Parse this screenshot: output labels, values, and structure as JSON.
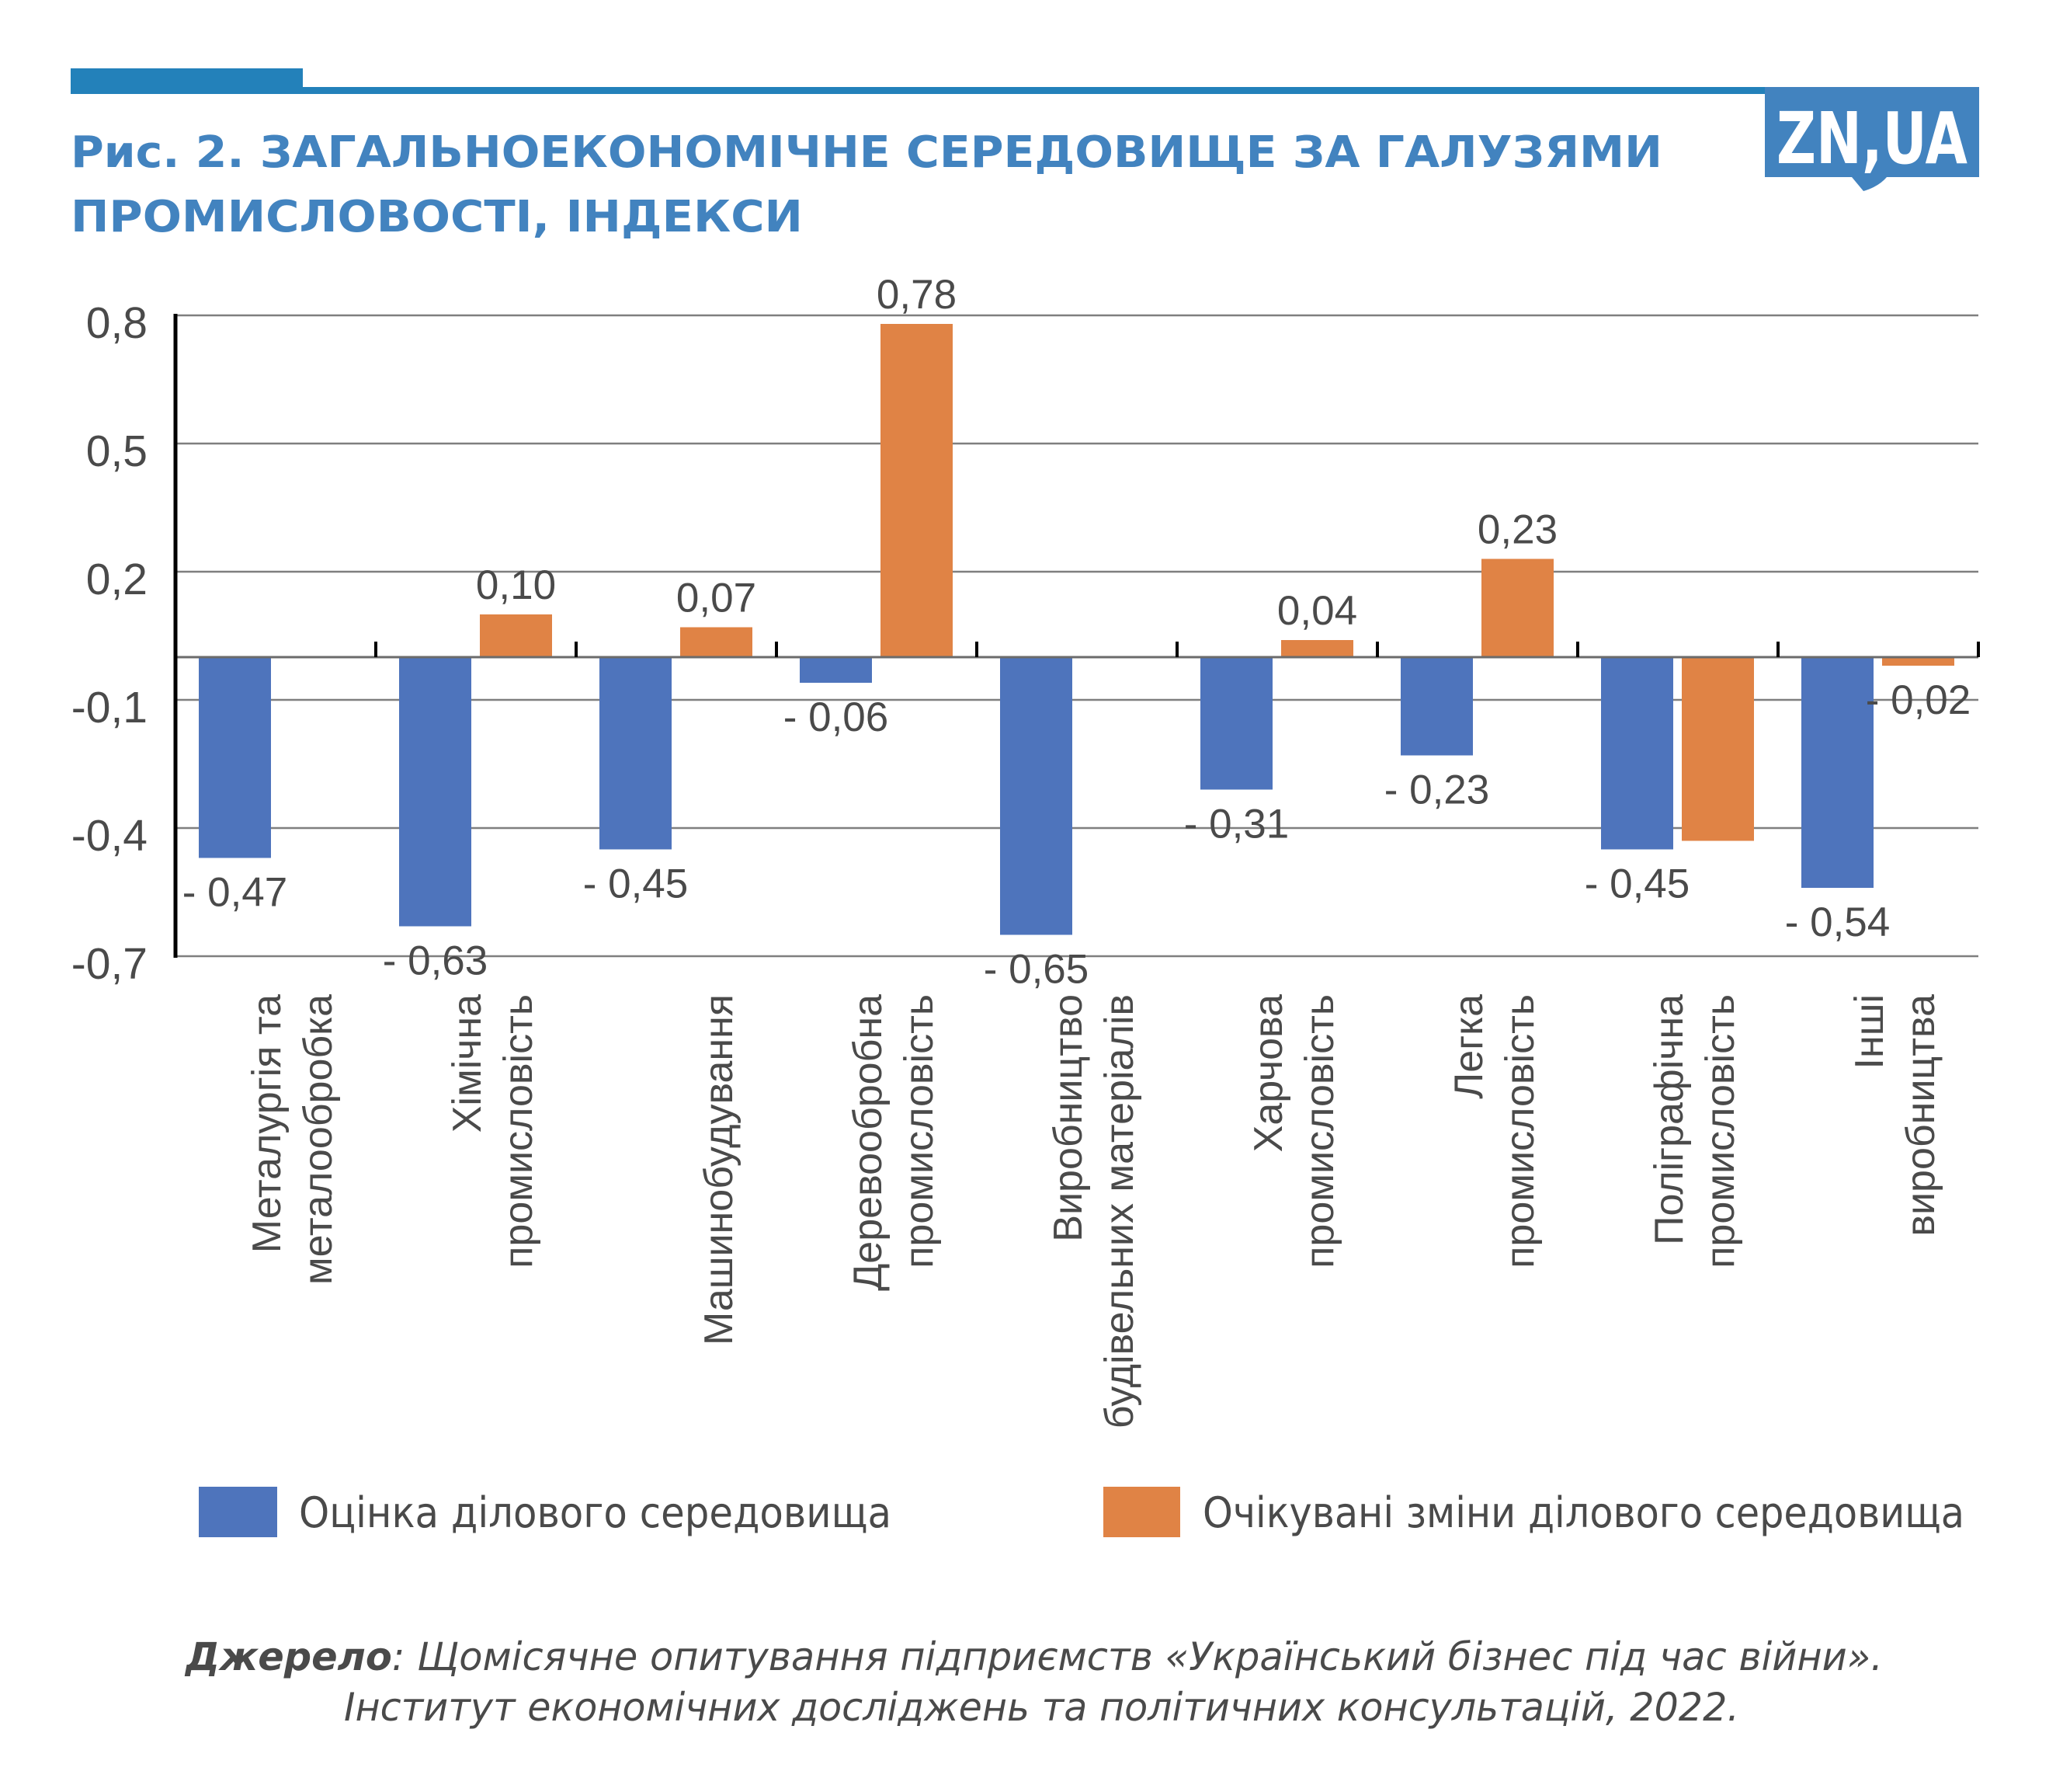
{
  "colors": {
    "accent_dark": "#2381BA",
    "title": "#4283BF",
    "logo_bg": "#4283BF",
    "series_assessment": "#4E74BC",
    "series_expected": "#E08345",
    "text": "#4A4A4A",
    "grid": "#7F7F7F",
    "axis": "#000000"
  },
  "header": {
    "title_line1": "Рис. 2. ЗАГАЛЬНОЕКОНОМІЧНЕ СЕРЕДОВИЩЕ ЗА ГАЛУЗЯМИ",
    "title_line2": "ПРОМИСЛОВОСТІ, ІНДЕКСИ",
    "logo": "ZN,UA"
  },
  "chart_data": {
    "type": "bar",
    "title": "Рис. 2. ЗАГАЛЬНОЕКОНОМІЧНЕ СЕРЕДОВИЩЕ ЗА ГАЛУЗЯМИ ПРОМИСЛОВОСТІ, ІНДЕКСИ",
    "xlabel": "",
    "ylabel": "",
    "ylim": [
      -0.7,
      0.8
    ],
    "yticks": [
      0.8,
      0.5,
      0.2,
      -0.1,
      -0.4,
      -0.7
    ],
    "ytick_labels": [
      "0,8",
      "0,5",
      "0,2",
      "-0,1",
      "-0,4",
      "-0,7"
    ],
    "grid": true,
    "legend_position": "bottom",
    "categories": [
      {
        "line1": "Металургія та",
        "line2": "металообробка"
      },
      {
        "line1": "Хімічна",
        "line2": "промисловість"
      },
      {
        "line1": "",
        "line2": "Машинобудування"
      },
      {
        "line1": "Деревообробна",
        "line2": "промисловість"
      },
      {
        "line1": "Виробництво",
        "line2": "будівельних матеріалів"
      },
      {
        "line1": "Харчова",
        "line2": "промисловість"
      },
      {
        "line1": "Легка",
        "line2": "промисловість"
      },
      {
        "line1": "Поліграфічна",
        "line2": "промисловість"
      },
      {
        "line1": "Інші",
        "line2": "виробництва"
      }
    ],
    "series": [
      {
        "name": "Оцінка ділового середовища",
        "color": "#4E74BC",
        "values": [
          -0.47,
          -0.63,
          -0.45,
          -0.06,
          -0.65,
          -0.31,
          -0.23,
          -0.45,
          -0.54
        ],
        "labels": [
          "- 0,47",
          "- 0,63",
          "- 0,45",
          "- 0,06",
          "- 0,65",
          "- 0,31",
          "- 0,23",
          "- 0,45",
          "- 0,54"
        ]
      },
      {
        "name": "Очікувані зміни ділового середовища",
        "color": "#E08345",
        "values": [
          0,
          0.1,
          0.07,
          0.78,
          0,
          0.04,
          0.23,
          -0.43,
          -0.02
        ],
        "labels": [
          null,
          "0,10",
          "0,07",
          "0,78",
          null,
          "0,04",
          "0,23",
          null,
          "- 0,02"
        ]
      }
    ]
  },
  "source": {
    "label": "Джерело",
    "line1_rest": ": Щомісячне опитування підприємств «Український бізнес під час війни».",
    "line2": "Інститут економічних досліджень та політичних консультацій, 2022."
  }
}
